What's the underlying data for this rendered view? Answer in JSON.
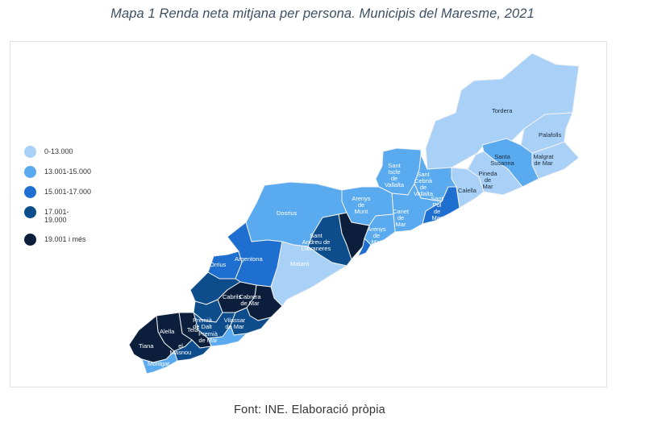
{
  "title": "Mapa 1 Renda neta mitjana per persona. Municipis del Maresme, 2021",
  "source": "Font: INE. Elaboració pròpia",
  "legend": [
    {
      "label": "0-13.000",
      "color": "#a9d1f7"
    },
    {
      "label": "13.001-15.000",
      "color": "#5aaaf0"
    },
    {
      "label": "15.001-17.000",
      "color": "#1e6fd0"
    },
    {
      "label": "17.001-\n19.000",
      "color": "#0d4d8c"
    },
    {
      "label": "19.001 i més",
      "color": "#0b1f3d"
    }
  ],
  "municipalities": {
    "tordera": "Tordera",
    "palafolls": "Palafolls",
    "santa_susanna": "Santa\nSusanna",
    "malgrat": "Malgrat\nde Mar",
    "pineda": "Pineda\nde\nMar",
    "calella": "Calella",
    "sant_iscle": "Sant\nIscle\nde\nVallalta",
    "sant_cebria": "Sant\nCebrià\nde\nVallalta",
    "sant_pol": "Sant\nPol\nde\nMar",
    "canet": "Canet\nde\nMar",
    "arenys_munt": "Arenys\nde\nMunt",
    "arenys_mar": "Arenys\nde\nMar",
    "sant_andreu": "Sant\nAndreu de\nLlavaneres",
    "dosrius": "Dosrius",
    "orrius": "Òrrius",
    "argentona": "Argentona",
    "mataro": "Mataró",
    "cabrils": "Cabrils",
    "cabrera": "Cabrera\nde Mar",
    "vilassar_mar": "Vilassar\nde Mar",
    "premia_dalt": "Premià\nde Dalt",
    "premia_mar": "Premià\nde Mar",
    "teia": "Teia",
    "alella": "Alella",
    "masnou": "el\nMasnou",
    "tiana": "Tiana",
    "montgat": "Montgat"
  }
}
